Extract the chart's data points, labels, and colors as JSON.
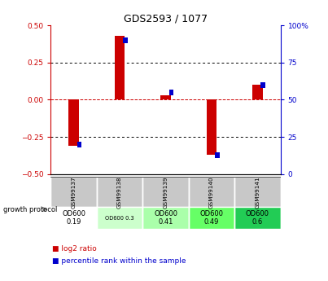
{
  "title": "GDS2593 / 1077",
  "samples": [
    "GSM99137",
    "GSM99138",
    "GSM99139",
    "GSM99140",
    "GSM99141"
  ],
  "log2_ratio": [
    -0.31,
    0.43,
    0.03,
    -0.37,
    0.1
  ],
  "percentile_rank": [
    20,
    90,
    55,
    13,
    60
  ],
  "ylim_left": [
    -0.5,
    0.5
  ],
  "ylim_right": [
    0,
    100
  ],
  "yticks_left": [
    -0.5,
    -0.25,
    0,
    0.25,
    0.5
  ],
  "yticks_right": [
    0,
    25,
    50,
    75,
    100
  ],
  "bar_color_red": "#cc0000",
  "bar_color_blue": "#0000cc",
  "zero_line_color": "#cc0000",
  "protocol_labels": [
    "OD600\n0.19",
    "OD600 0.3",
    "OD600\n0.41",
    "OD600\n0.49",
    "OD600\n0.6"
  ],
  "protocol_bg_colors": [
    "#ffffff",
    "#ccffcc",
    "#aaffaa",
    "#66ff66",
    "#22cc55"
  ],
  "cell_bg_gray": "#c8c8c8",
  "growth_protocol_label": "growth protocol",
  "legend_red_label": "log2 ratio",
  "legend_blue_label": "percentile rank within the sample"
}
